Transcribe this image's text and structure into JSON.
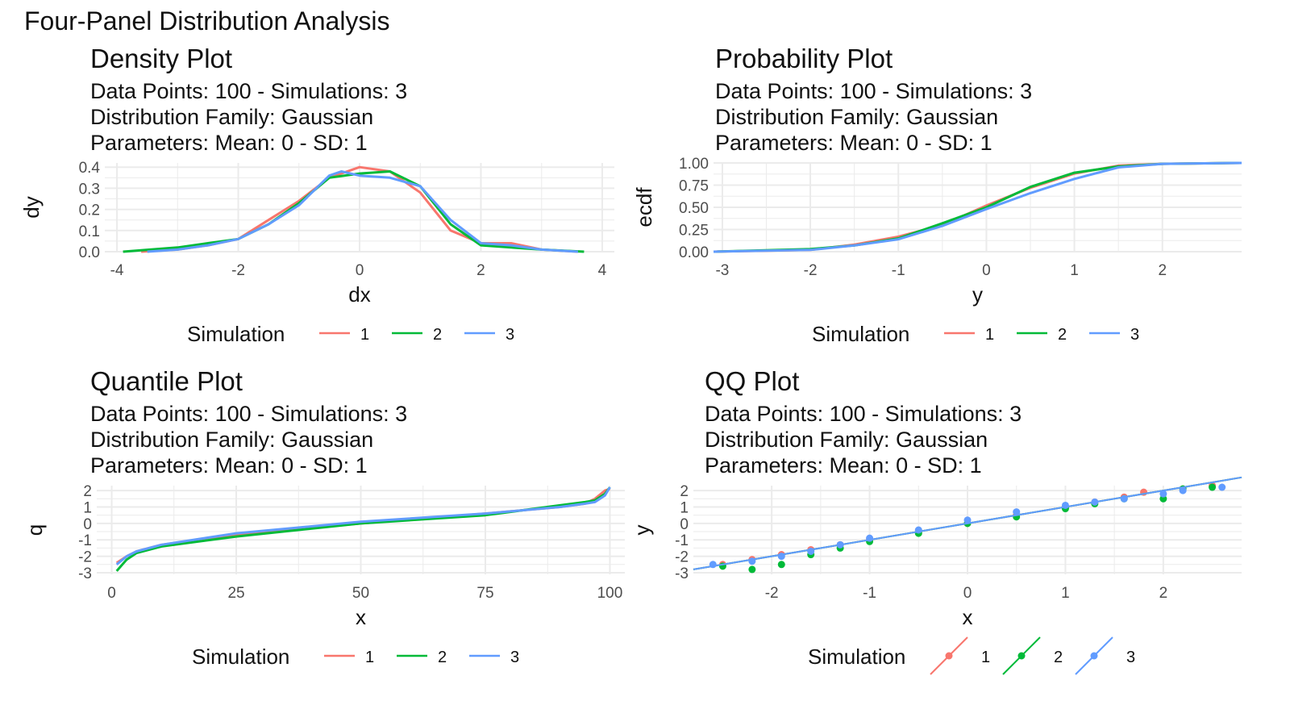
{
  "title": "Four-Panel Distribution Analysis",
  "colors": {
    "1": "#F8766D",
    "2": "#00BA38",
    "3": "#619CFF",
    "grid": "#EBEBEB"
  },
  "legend": {
    "title": "Simulation",
    "keys": [
      "1",
      "2",
      "3"
    ]
  },
  "chart_data": [
    {
      "type": "line",
      "title": "Density Plot",
      "subtitle": [
        "Data Points: 100 - Simulations: 3",
        "Distribution Family: Gaussian",
        "Parameters: Mean: 0 - SD: 1"
      ],
      "xlabel": "dx",
      "ylabel": "dy",
      "xlim": [
        -4.2,
        4.2
      ],
      "ylim": [
        0,
        0.42
      ],
      "xticks": [
        "-4",
        "-2",
        "0",
        "2",
        "4"
      ],
      "yticks": [
        "0.0",
        "0.1",
        "0.2",
        "0.3",
        "0.4"
      ],
      "grid": true,
      "legend": "bottom",
      "series": [
        {
          "name": "1",
          "x": [
            -3.6,
            -3,
            -2.5,
            -2,
            -1.5,
            -1,
            -0.5,
            0,
            0.5,
            1,
            1.5,
            2,
            2.5,
            3,
            3.6
          ],
          "y": [
            0,
            0.01,
            0.03,
            0.06,
            0.15,
            0.24,
            0.35,
            0.4,
            0.38,
            0.28,
            0.1,
            0.04,
            0.04,
            0.01,
            0
          ]
        },
        {
          "name": "2",
          "x": [
            -3.9,
            -3,
            -2.5,
            -2,
            -1.5,
            -1,
            -0.5,
            0,
            0.5,
            1,
            1.5,
            2,
            2.5,
            3,
            3.7
          ],
          "y": [
            0,
            0.02,
            0.04,
            0.06,
            0.13,
            0.23,
            0.35,
            0.37,
            0.38,
            0.31,
            0.13,
            0.03,
            0.02,
            0.01,
            0
          ]
        },
        {
          "name": "3",
          "x": [
            -3.5,
            -3,
            -2.5,
            -2,
            -1.5,
            -1,
            -0.5,
            -0.3,
            0,
            0.5,
            1,
            1.5,
            2,
            2.5,
            3,
            3.6
          ],
          "y": [
            0,
            0.01,
            0.03,
            0.06,
            0.13,
            0.22,
            0.36,
            0.38,
            0.36,
            0.35,
            0.31,
            0.15,
            0.04,
            0.03,
            0.01,
            0
          ]
        }
      ]
    },
    {
      "type": "line",
      "title": "Probability Plot",
      "subtitle": [
        "Data Points: 100 - Simulations: 3",
        "Distribution Family: Gaussian",
        "Parameters: Mean: 0 - SD: 1"
      ],
      "xlabel": "y",
      "ylabel": "ecdf",
      "xlim": [
        -3.1,
        2.9
      ],
      "ylim": [
        0,
        1
      ],
      "xticks": [
        "-3",
        "-2",
        "-1",
        "0",
        "1",
        "2"
      ],
      "yticks": [
        "0.00",
        "0.25",
        "0.50",
        "0.75",
        "1.00"
      ],
      "grid": true,
      "legend": "bottom",
      "series": [
        {
          "name": "1",
          "x": [
            -3.1,
            -2,
            -1.5,
            -1,
            -0.5,
            0,
            0.5,
            1,
            1.5,
            2,
            2.9
          ],
          "y": [
            0,
            0.02,
            0.08,
            0.17,
            0.3,
            0.52,
            0.72,
            0.88,
            0.97,
            0.99,
            1
          ]
        },
        {
          "name": "2",
          "x": [
            -3.1,
            -2,
            -1.5,
            -1,
            -0.5,
            0,
            0.5,
            1,
            1.5,
            2,
            2.9
          ],
          "y": [
            0,
            0.03,
            0.07,
            0.15,
            0.32,
            0.5,
            0.73,
            0.89,
            0.96,
            0.99,
            1
          ]
        },
        {
          "name": "3",
          "x": [
            -3.1,
            -2,
            -1.5,
            -1,
            -0.5,
            0,
            0.5,
            1,
            1.5,
            2,
            2.9
          ],
          "y": [
            0,
            0.02,
            0.07,
            0.14,
            0.29,
            0.48,
            0.66,
            0.82,
            0.95,
            0.99,
            1
          ]
        }
      ]
    },
    {
      "type": "line",
      "title": "Quantile Plot",
      "subtitle": [
        "Data Points: 100 - Simulations: 3",
        "Distribution Family: Gaussian",
        "Parameters: Mean: 0 - SD: 1"
      ],
      "xlabel": "x",
      "ylabel": "q",
      "xlim": [
        -3,
        103
      ],
      "ylim": [
        -3.1,
        2.3
      ],
      "xticks": [
        "0",
        "25",
        "50",
        "75",
        "100"
      ],
      "yticks": [
        "-3",
        "-2",
        "-1",
        "0",
        "1",
        "2"
      ],
      "grid": true,
      "legend": "bottom",
      "series": [
        {
          "name": "1",
          "x": [
            1,
            3,
            5,
            10,
            25,
            50,
            75,
            90,
            95,
            97,
            99,
            100
          ],
          "y": [
            -2.4,
            -2.0,
            -1.7,
            -1.3,
            -0.7,
            0,
            0.6,
            1.0,
            1.2,
            1.5,
            2.0,
            2.1
          ]
        },
        {
          "name": "2",
          "x": [
            1,
            3,
            5,
            10,
            25,
            50,
            75,
            90,
            95,
            97,
            99,
            100
          ],
          "y": [
            -2.9,
            -2.2,
            -1.8,
            -1.4,
            -0.8,
            0,
            0.5,
            1.1,
            1.3,
            1.4,
            1.8,
            2.2
          ]
        },
        {
          "name": "3",
          "x": [
            1,
            3,
            5,
            10,
            25,
            50,
            75,
            90,
            95,
            97,
            99,
            100
          ],
          "y": [
            -2.5,
            -2.0,
            -1.7,
            -1.3,
            -0.6,
            0.1,
            0.6,
            1.0,
            1.2,
            1.3,
            1.7,
            2.2
          ]
        }
      ]
    },
    {
      "type": "scatter",
      "title": "QQ Plot",
      "subtitle": [
        "Data Points: 100 - Simulations: 3",
        "Distribution Family: Gaussian",
        "Parameters: Mean: 0 - SD: 1"
      ],
      "xlabel": "x",
      "ylabel": "y",
      "xlim": [
        -2.8,
        2.8
      ],
      "ylim": [
        -3.1,
        2.3
      ],
      "xticks": [
        "-2",
        "-1",
        "0",
        "1",
        "2"
      ],
      "yticks": [
        "-3",
        "-2",
        "-1",
        "0",
        "1",
        "2"
      ],
      "grid": true,
      "legend": "bottom",
      "series": [
        {
          "name": "1",
          "x": [
            -2.5,
            -2.2,
            -1.9,
            -1.6,
            -1.3,
            -1,
            -0.5,
            0,
            0.5,
            1,
            1.3,
            1.6,
            1.8,
            2.2,
            2.5
          ],
          "y": [
            -2.5,
            -2.2,
            -1.9,
            -1.6,
            -1.3,
            -1,
            -0.5,
            0,
            0.5,
            1,
            1.3,
            1.6,
            1.9,
            2.1,
            2.3
          ]
        },
        {
          "name": "2",
          "x": [
            -2.5,
            -2.2,
            -1.9,
            -1.6,
            -1.3,
            -1,
            -0.5,
            0,
            0.5,
            1,
            1.3,
            1.6,
            2,
            2.2,
            2.5
          ],
          "y": [
            -2.6,
            -2.8,
            -2.5,
            -1.9,
            -1.5,
            -1.1,
            -0.6,
            0,
            0.4,
            0.9,
            1.2,
            1.5,
            1.5,
            2.1,
            2.2
          ]
        },
        {
          "name": "3",
          "x": [
            -2.6,
            -2.2,
            -1.9,
            -1.6,
            -1.3,
            -1,
            -0.5,
            0,
            0.5,
            1,
            1.3,
            1.6,
            2,
            2.2,
            2.6
          ],
          "y": [
            -2.5,
            -2.3,
            -2.0,
            -1.7,
            -1.3,
            -0.9,
            -0.4,
            0.2,
            0.7,
            1.1,
            1.3,
            1.5,
            1.8,
            2.0,
            2.2
          ]
        }
      ]
    }
  ]
}
